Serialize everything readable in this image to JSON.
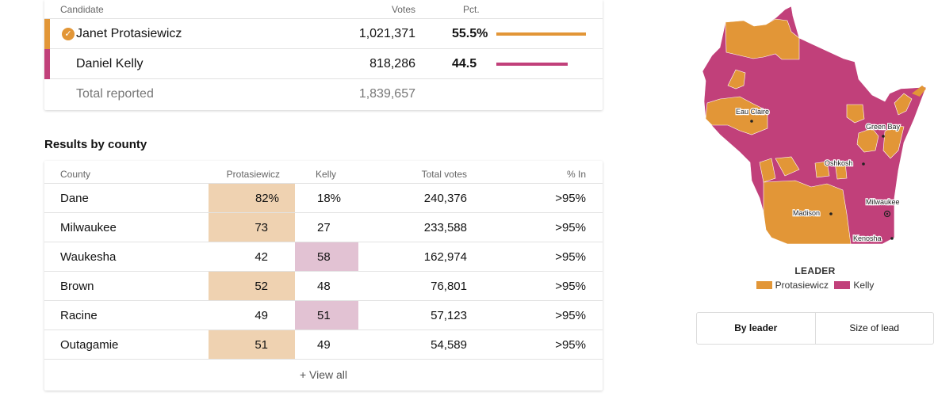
{
  "colors": {
    "protasiewicz": "#e29637",
    "kelly": "#c1407a",
    "light_p": "#efd2b1",
    "light_k": "#e2c2d3"
  },
  "candidates": {
    "headers": {
      "candidate": "Candidate",
      "votes": "Votes",
      "pct": "Pct."
    },
    "rows": [
      {
        "name": "Janet Protasiewicz",
        "votes": "1,021,371",
        "pct": "55.5%",
        "share": 0.555,
        "winner": true,
        "check_icon": "checkmark-circle-icon"
      },
      {
        "name": "Daniel Kelly",
        "votes": "818,286",
        "pct": "44.5",
        "share": 0.445,
        "winner": false
      }
    ],
    "total": {
      "label": "Total reported",
      "votes": "1,839,657"
    }
  },
  "county_section": {
    "title": "Results by county",
    "headers": {
      "county": "County",
      "p": "Protasiewicz",
      "k": "Kelly",
      "total": "Total votes",
      "in": "% In"
    },
    "rows": [
      {
        "county": "Dane",
        "p": "82%",
        "k": "18%",
        "total": "240,376",
        "in": ">95%",
        "leader": "p"
      },
      {
        "county": "Milwaukee",
        "p": "73",
        "k": "27",
        "total": "233,588",
        "in": ">95%",
        "leader": "p"
      },
      {
        "county": "Waukesha",
        "p": "42",
        "k": "58",
        "total": "162,974",
        "in": ">95%",
        "leader": "k"
      },
      {
        "county": "Brown",
        "p": "52",
        "k": "48",
        "total": "76,801",
        "in": ">95%",
        "leader": "p"
      },
      {
        "county": "Racine",
        "p": "49",
        "k": "51",
        "total": "57,123",
        "in": ">95%",
        "leader": "k"
      },
      {
        "county": "Outagamie",
        "p": "51",
        "k": "49",
        "total": "54,589",
        "in": ">95%",
        "leader": "p"
      }
    ],
    "view_all": "+ View all"
  },
  "map": {
    "cities": {
      "eau_claire": "Eau Claire",
      "green_bay": "Green Bay",
      "oshkosh": "Oshkosh",
      "madison": "Madison",
      "milwaukee": "Milwaukee",
      "kenosha": "Kenosha"
    }
  },
  "legend": {
    "title": "LEADER",
    "p": "Protasiewicz",
    "k": "Kelly"
  },
  "toggle": {
    "by_leader": "By leader",
    "size_of_lead": "Size of lead"
  }
}
